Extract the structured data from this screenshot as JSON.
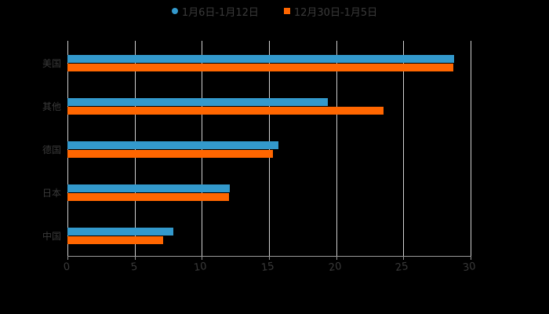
{
  "chart_data": {
    "type": "bar",
    "orientation": "horizontal",
    "title": "",
    "xlabel": "",
    "ylabel": "",
    "categories": [
      "美国",
      "其他",
      "德国",
      "日本",
      "中国"
    ],
    "series": [
      {
        "name": "1月6日-1月12日",
        "color": "#3399cc",
        "marker": "circle",
        "values": [
          28.8,
          19.4,
          15.7,
          12.1,
          7.9
        ]
      },
      {
        "name": "12月30日-1月5日",
        "color": "#ff6600",
        "marker": "square",
        "values": [
          28.7,
          23.5,
          15.3,
          12.0,
          7.1
        ]
      }
    ],
    "xlim": [
      0,
      30
    ],
    "xticks": [
      "0",
      "5",
      "10",
      "15",
      "20",
      "25",
      "30"
    ],
    "grid": true,
    "legend_position": "top"
  },
  "legend": {
    "items": [
      {
        "label": "1月6日-1月12日",
        "color": "#3399cc"
      },
      {
        "label": "12月30日-1月5日",
        "color": "#ff6600"
      }
    ]
  }
}
